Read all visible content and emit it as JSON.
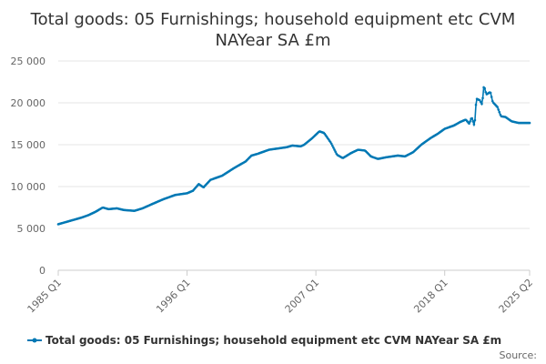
{
  "title_line1": "Total goods: 05 Furnishings; household equipment etc CVM",
  "title_line2": "NAYear SA £m",
  "source_label": "Source:",
  "colors": {
    "series": "#0078b4",
    "grid": "#e6e6e6",
    "axis": "#cccccc",
    "text": "#666666"
  },
  "chart_data": {
    "type": "line",
    "title": "Total goods: 05 Furnishings; household equipment etc CVM NAYear SA £m",
    "xlabel": "",
    "ylabel": "",
    "ylim": [
      0,
      25000
    ],
    "yticks": [
      0,
      5000,
      10000,
      15000,
      20000,
      25000
    ],
    "ytick_labels": [
      "0",
      "5 000",
      "10 000",
      "15 000",
      "20 000",
      "25 000"
    ],
    "x_start_year": 1985,
    "x_start_month": 1,
    "x_end_year": 2025,
    "x_end_month": 4,
    "xtick_labels": [
      "1985 Q1",
      "1996 Q1",
      "2007 Q1",
      "2018 Q1",
      "2025 Q2"
    ],
    "xtick_years": [
      1985,
      1996,
      2007,
      2018,
      2025.25
    ],
    "series": [
      {
        "name": "Total goods: 05 Furnishings; household equipment etc CVM NAYear SA £m",
        "anchors": [
          [
            1985.0,
            5500
          ],
          [
            1986.0,
            5900
          ],
          [
            1987.0,
            6300
          ],
          [
            1987.6,
            6600
          ],
          [
            1988.2,
            7000
          ],
          [
            1988.8,
            7500
          ],
          [
            1989.3,
            7300
          ],
          [
            1990.0,
            7400
          ],
          [
            1990.6,
            7200
          ],
          [
            1991.5,
            7100
          ],
          [
            1992.2,
            7400
          ],
          [
            1993.0,
            7900
          ],
          [
            1994.0,
            8500
          ],
          [
            1995.0,
            9000
          ],
          [
            1995.5,
            9100
          ],
          [
            1996.0,
            9200
          ],
          [
            1996.5,
            9500
          ],
          [
            1997.0,
            10300
          ],
          [
            1997.4,
            9900
          ],
          [
            1998.0,
            10800
          ],
          [
            1999.0,
            11300
          ],
          [
            2000.0,
            12200
          ],
          [
            2001.0,
            13000
          ],
          [
            2001.5,
            13700
          ],
          [
            2002.0,
            13900
          ],
          [
            2003.0,
            14400
          ],
          [
            2004.0,
            14600
          ],
          [
            2004.5,
            14700
          ],
          [
            2005.0,
            14900
          ],
          [
            2005.7,
            14800
          ],
          [
            2006.0,
            15000
          ],
          [
            2006.7,
            15800
          ],
          [
            2007.3,
            16600
          ],
          [
            2007.7,
            16400
          ],
          [
            2008.3,
            15200
          ],
          [
            2008.8,
            13800
          ],
          [
            2009.3,
            13400
          ],
          [
            2010.0,
            14000
          ],
          [
            2010.6,
            14400
          ],
          [
            2011.2,
            14300
          ],
          [
            2011.7,
            13600
          ],
          [
            2012.3,
            13300
          ],
          [
            2013.0,
            13500
          ],
          [
            2014.0,
            13700
          ],
          [
            2014.6,
            13600
          ],
          [
            2015.3,
            14100
          ],
          [
            2016.0,
            15000
          ],
          [
            2016.8,
            15800
          ],
          [
            2017.4,
            16300
          ],
          [
            2018.0,
            16900
          ],
          [
            2018.8,
            17300
          ],
          [
            2019.3,
            17700
          ],
          [
            2019.8,
            18000
          ],
          [
            2020.1,
            17500
          ],
          [
            2020.3,
            18300
          ],
          [
            2020.55,
            17200
          ],
          [
            2020.7,
            20500
          ],
          [
            2021.0,
            20300
          ],
          [
            2021.2,
            19800
          ],
          [
            2021.35,
            22100
          ],
          [
            2021.55,
            21000
          ],
          [
            2021.9,
            21300
          ],
          [
            2022.1,
            20100
          ],
          [
            2022.5,
            19500
          ],
          [
            2022.8,
            18400
          ],
          [
            2023.2,
            18300
          ],
          [
            2023.7,
            17800
          ],
          [
            2024.3,
            17600
          ],
          [
            2025.25,
            17600
          ]
        ]
      }
    ]
  }
}
